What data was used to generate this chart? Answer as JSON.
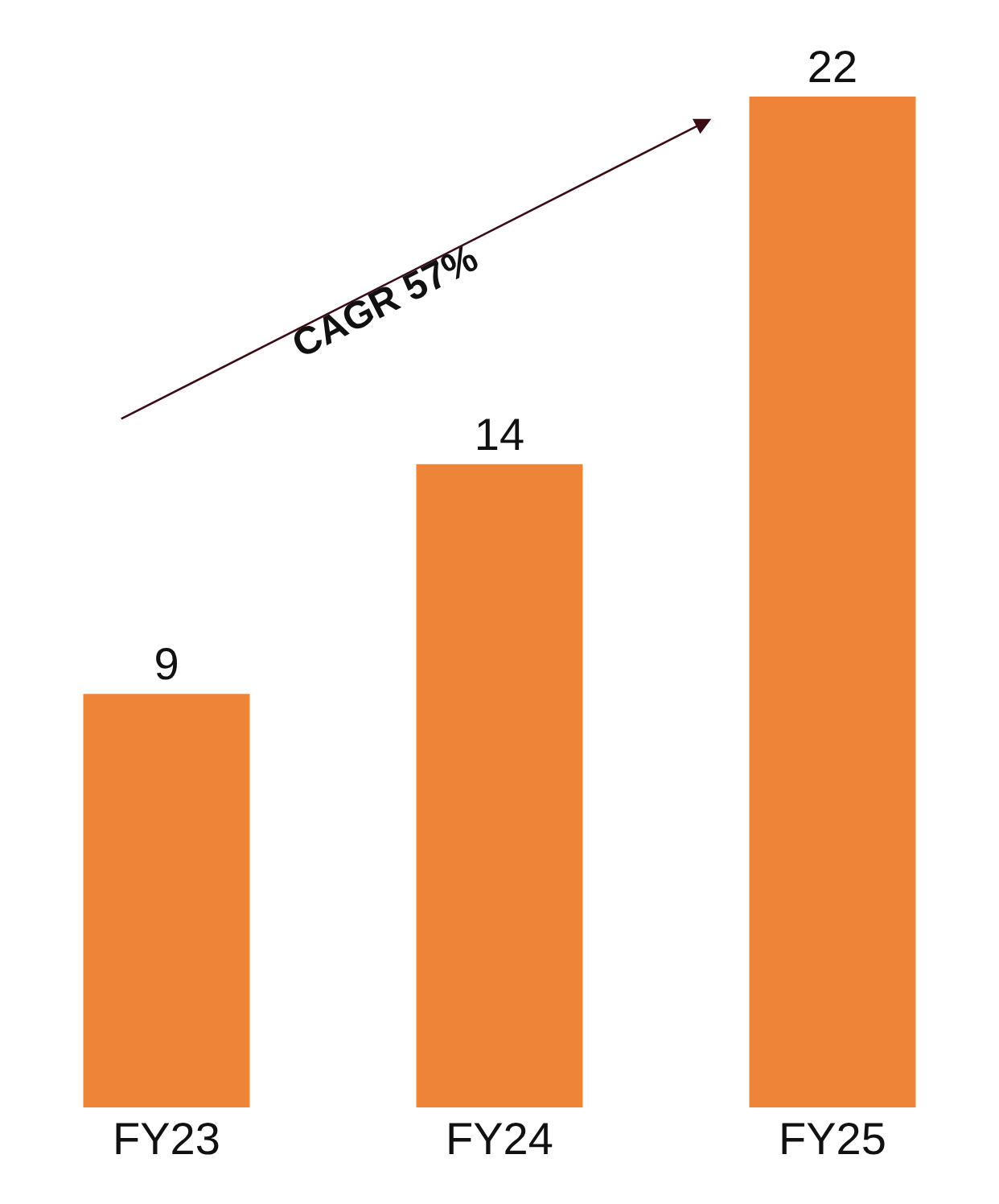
{
  "chart_data": {
    "type": "bar",
    "categories": [
      "FY23",
      "FY24",
      "FY25"
    ],
    "values": [
      9,
      14,
      22
    ],
    "color": "#ed8437",
    "data_labels": true,
    "annotations": [
      "CAGR 57%"
    ],
    "legend": false
  }
}
